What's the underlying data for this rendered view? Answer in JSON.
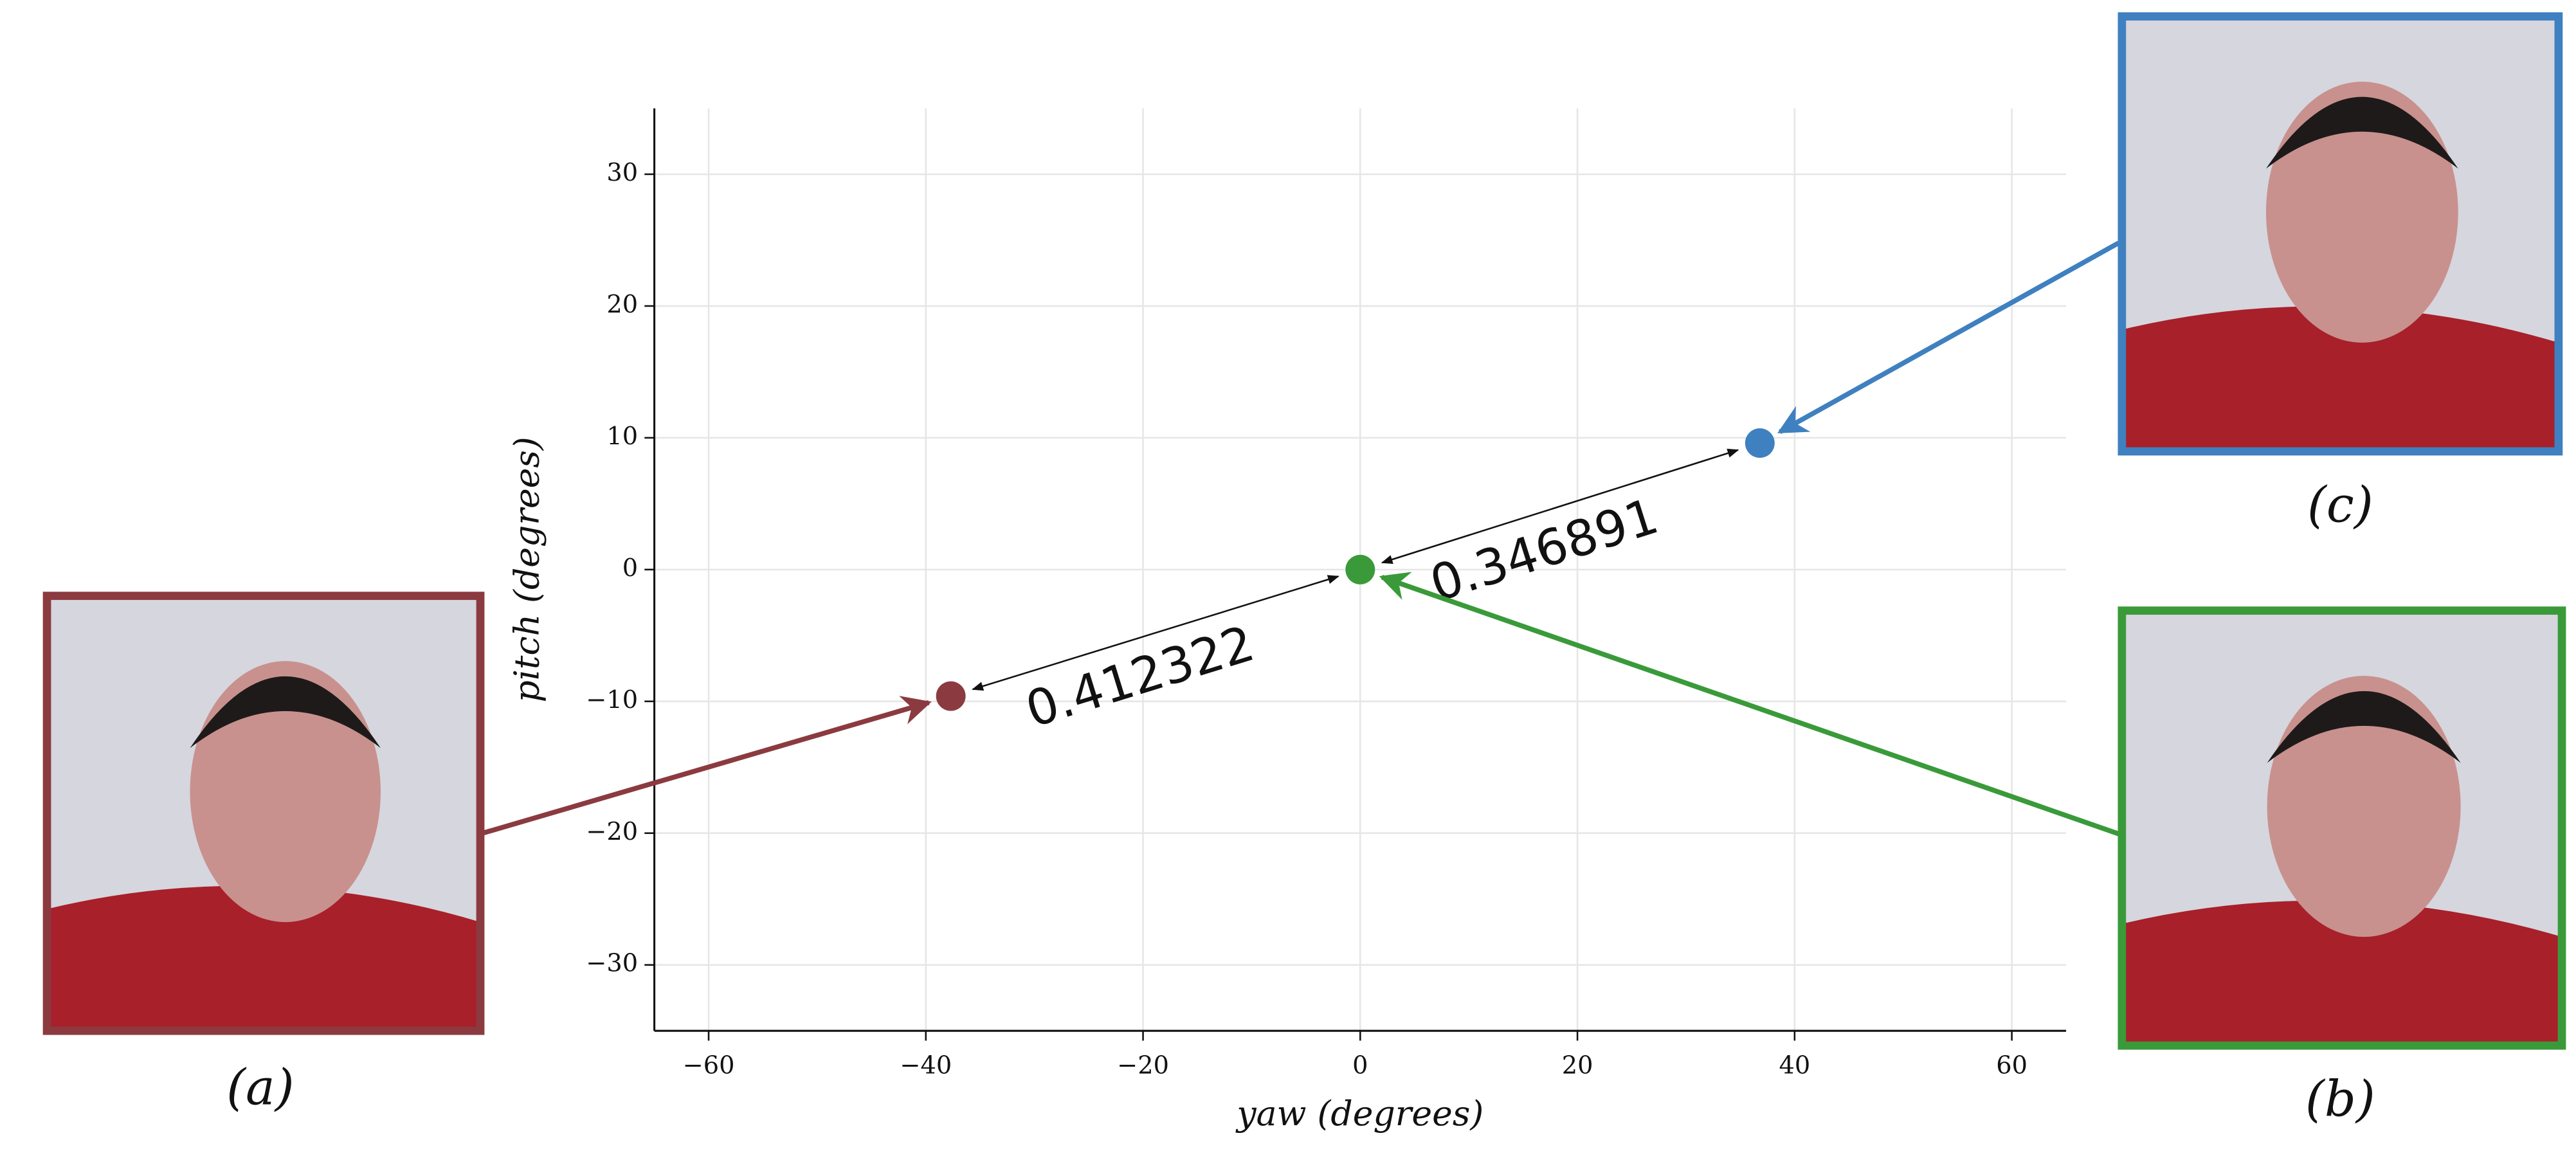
{
  "chart_data": {
    "type": "scatter",
    "x_label": "yaw (degrees)",
    "y_label": "pitch (degrees)",
    "x": [
      -37.7,
      0,
      36.8
    ],
    "values": [
      -9.6,
      0,
      9.6
    ],
    "colors": [
      "#8b3a40",
      "#3a9a3a",
      "#3f80c0"
    ],
    "point_labels": [
      "(a)",
      "(b)",
      "(c)"
    ],
    "annotations": [
      {
        "text": "0.412322",
        "from": 0,
        "to": 1
      },
      {
        "text": "0.346891",
        "from": 1,
        "to": 2
      }
    ],
    "xlim": [
      -65,
      65
    ],
    "ylim": [
      -35,
      35
    ],
    "xticks": [
      {
        "value": -60,
        "label": "−60"
      },
      {
        "value": -40,
        "label": "−40"
      },
      {
        "value": -20,
        "label": "−20"
      },
      0,
      20,
      40,
      60
    ],
    "yticks": [
      {
        "value": -30,
        "label": "−30"
      },
      {
        "value": -20,
        "label": "−20"
      },
      {
        "value": -10,
        "label": "−10"
      },
      0,
      10,
      20,
      30
    ],
    "grid": true
  }
}
